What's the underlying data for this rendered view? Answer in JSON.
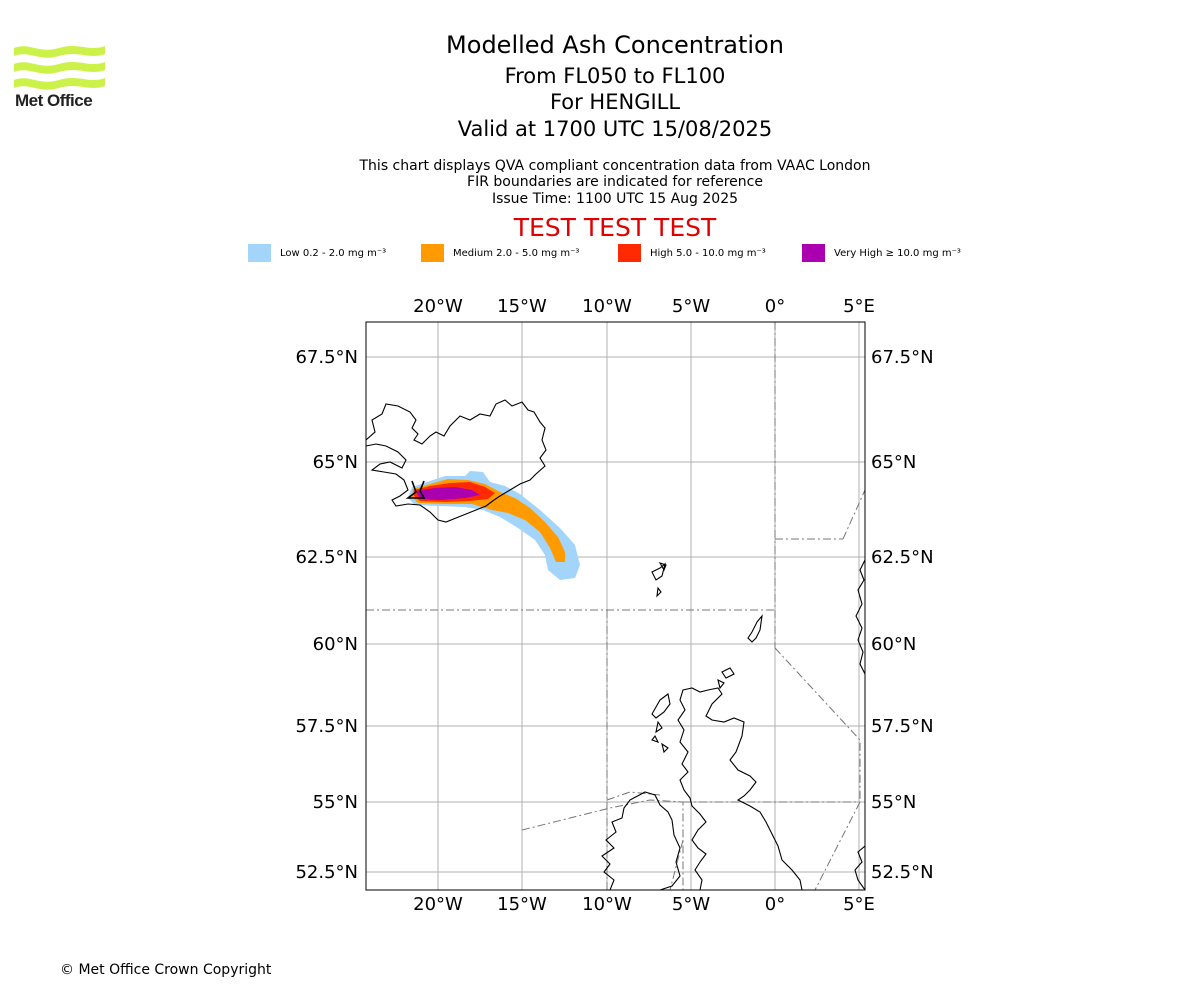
{
  "logo": {
    "text": "Met Office",
    "color": "#ccf24a"
  },
  "titles": {
    "main": "Modelled Ash Concentration",
    "levels": "From FL050 to FL100",
    "volcano": "For HENGILL",
    "valid": "Valid at 1700 UTC 15/08/2025"
  },
  "notes": {
    "line1": "This chart displays QVA compliant concentration data from VAAC London",
    "line2": "FIR boundaries are indicated for reference",
    "issue": "Issue Time: 1100 UTC 15 Aug 2025"
  },
  "test_banner": "TEST TEST TEST",
  "legend": [
    {
      "label": "Low 0.2 - 2.0 mg m⁻³",
      "color": "#a3d4fa"
    },
    {
      "label": "Medium 2.0 - 5.0 mg m⁻³",
      "color": "#ff9a00"
    },
    {
      "label": "High 5.0 - 10.0 mg m⁻³",
      "color": "#ff2a00"
    },
    {
      "label": "Very High ≥ 10.0 mg m⁻³",
      "color": "#aa00b0"
    }
  ],
  "map": {
    "lon_ticks": [
      "20°W",
      "15°W",
      "10°W",
      "5°W",
      "0°",
      "5°E"
    ],
    "lat_ticks": [
      "67.5°N",
      "65°N",
      "62.5°N",
      "60°N",
      "57.5°N",
      "55°N",
      "52.5°N"
    ],
    "volcano_icon": "volcano-marker-icon"
  },
  "copyright": "© Met Office Crown Copyright"
}
